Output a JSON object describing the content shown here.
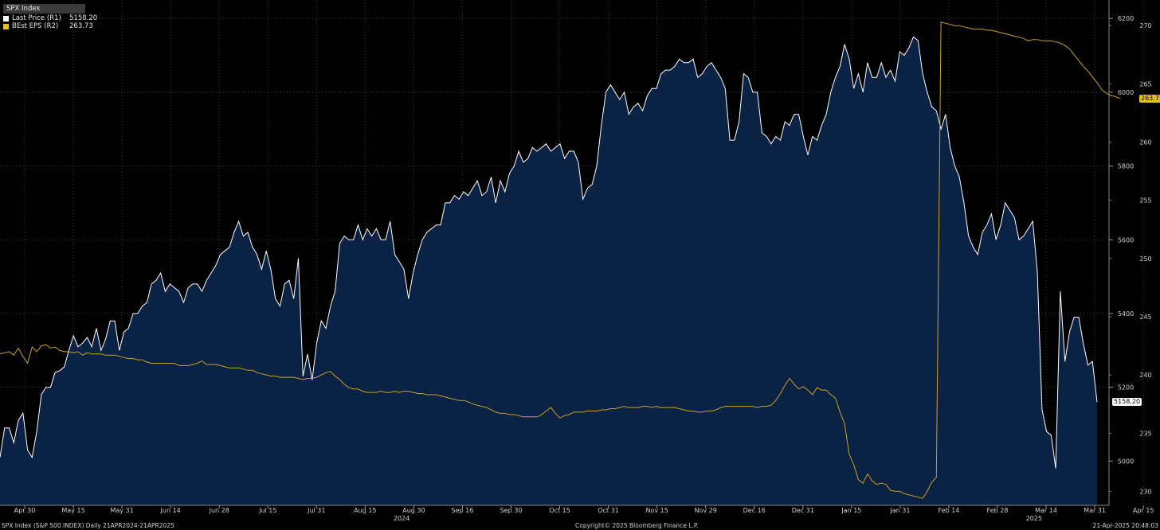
{
  "legend": {
    "header": "SPX Index",
    "entries": [
      {
        "label": "Last Price  (R1)",
        "value": "5158.20",
        "color": "#ffffff"
      },
      {
        "label": "BEst EPS  (R2)",
        "value": "263.73",
        "color": "#e8c21a"
      }
    ]
  },
  "footer": {
    "left": "SPX Index (S&P 500 INDEX)  Daily 21APR2024-21APR2025",
    "center": "Copyright© 2025 Bloomberg Finance L.P.",
    "right": "21-Apr-2025 20:48:03"
  },
  "chart_data": {
    "type": "area",
    "x_ticks": [
      "Apr 30",
      "May 15",
      "May 31",
      "Jun 14",
      "Jun 28",
      "Jul 15",
      "Jul 31",
      "Aug 15",
      "Aug 30",
      "Sep 16",
      "Sep 30",
      "Oct 15",
      "Oct 31",
      "Nov 15",
      "Nov 29",
      "Dec 16",
      "Dec 31",
      "Jan 15",
      "Jan 31",
      "Feb 14",
      "Feb 28",
      "Mar 14",
      "Mar 31",
      "Apr 15"
    ],
    "year_labels": [
      {
        "label": "2024",
        "after_tick": "Aug 15"
      },
      {
        "label": "2025",
        "after_tick": "Feb 28"
      }
    ],
    "axis_r1": {
      "ticks": [
        5000,
        5200,
        5400,
        5600,
        5800,
        6000,
        6200
      ],
      "range": [
        4880,
        6250
      ]
    },
    "axis_r2": {
      "ticks": [
        230,
        235,
        240,
        245,
        250,
        255,
        260,
        265,
        270
      ],
      "range": [
        228.8,
        272.2
      ]
    },
    "grid": true,
    "series": [
      {
        "name": "Last Price",
        "axis": "R1",
        "style": "area",
        "color": "#ffffff",
        "fill": "#0a2244",
        "last_value_label": "5158.20",
        "values": [
          5010,
          5090,
          5090,
          5050,
          5110,
          5130,
          5030,
          5010,
          5080,
          5180,
          5200,
          5200,
          5240,
          5245,
          5255,
          5300,
          5340,
          5310,
          5320,
          5335,
          5310,
          5360,
          5300,
          5330,
          5380,
          5380,
          5300,
          5350,
          5360,
          5400,
          5400,
          5420,
          5430,
          5480,
          5490,
          5510,
          5460,
          5480,
          5470,
          5460,
          5430,
          5470,
          5480,
          5480,
          5460,
          5490,
          5510,
          5530,
          5560,
          5570,
          5580,
          5620,
          5650,
          5610,
          5620,
          5580,
          5560,
          5520,
          5570,
          5520,
          5440,
          5420,
          5480,
          5490,
          5440,
          5550,
          5230,
          5290,
          5220,
          5320,
          5380,
          5360,
          5420,
          5460,
          5590,
          5610,
          5600,
          5600,
          5640,
          5600,
          5630,
          5610,
          5630,
          5600,
          5600,
          5650,
          5560,
          5540,
          5520,
          5440,
          5510,
          5560,
          5600,
          5620,
          5630,
          5640,
          5640,
          5700,
          5700,
          5720,
          5710,
          5730,
          5720,
          5740,
          5760,
          5720,
          5730,
          5770,
          5700,
          5760,
          5730,
          5780,
          5800,
          5840,
          5810,
          5820,
          5850,
          5840,
          5850,
          5860,
          5840,
          5850,
          5860,
          5820,
          5840,
          5840,
          5810,
          5710,
          5740,
          5750,
          5800,
          5910,
          6000,
          6020,
          6000,
          5980,
          6000,
          5940,
          5960,
          5970,
          5950,
          5990,
          6010,
          6010,
          6050,
          6060,
          6060,
          6070,
          6090,
          6080,
          6080,
          6090,
          6040,
          6050,
          6070,
          6080,
          6060,
          6040,
          6010,
          5870,
          5870,
          5920,
          6050,
          6040,
          6000,
          6000,
          5890,
          5880,
          5860,
          5880,
          5870,
          5920,
          5910,
          5940,
          5940,
          5880,
          5830,
          5880,
          5870,
          5910,
          5940,
          6000,
          6040,
          6070,
          6130,
          6090,
          6010,
          6050,
          6000,
          6080,
          6040,
          6040,
          6080,
          6040,
          6060,
          6030,
          6110,
          6100,
          6120,
          6150,
          6140,
          6050,
          6000,
          5960,
          5950,
          5900,
          5940,
          5850,
          5800,
          5770,
          5700,
          5610,
          5580,
          5560,
          5620,
          5640,
          5670,
          5600,
          5640,
          5700,
          5680,
          5660,
          5600,
          5610,
          5630,
          5650,
          5510,
          5140,
          5080,
          5070,
          4980,
          5460,
          5270,
          5350,
          5390,
          5390,
          5320,
          5260,
          5270,
          5160
        ]
      },
      {
        "name": "BEst EPS",
        "axis": "R2",
        "style": "line",
        "color": "#c9a227",
        "last_value_label": "263.73",
        "values": [
          241.8,
          241.9,
          242.0,
          241.7,
          242.3,
          241.6,
          241.0,
          242.4,
          242.0,
          242.5,
          242.6,
          242.3,
          242.4,
          242.1,
          242.0,
          242.0,
          241.9,
          242.0,
          241.7,
          241.9,
          241.8,
          241.8,
          241.8,
          241.7,
          241.7,
          241.7,
          241.6,
          241.5,
          241.4,
          241.4,
          241.3,
          241.3,
          241.1,
          241.0,
          241.0,
          241.0,
          241.0,
          241.0,
          241.0,
          240.8,
          240.8,
          240.8,
          240.9,
          241.0,
          241.2,
          240.9,
          240.9,
          240.9,
          240.8,
          240.7,
          240.6,
          240.6,
          240.6,
          240.5,
          240.4,
          240.4,
          240.2,
          240.1,
          240.0,
          239.9,
          239.9,
          239.8,
          239.8,
          239.8,
          239.8,
          239.7,
          239.6,
          239.7,
          239.7,
          239.8,
          240.0,
          240.2,
          240.3,
          239.9,
          239.6,
          239.2,
          238.9,
          238.8,
          238.8,
          238.6,
          238.5,
          238.5,
          238.5,
          238.6,
          238.5,
          238.5,
          238.6,
          238.5,
          238.6,
          238.6,
          238.5,
          238.4,
          238.4,
          238.3,
          238.3,
          238.3,
          238.2,
          238.1,
          238.0,
          237.9,
          237.8,
          237.8,
          237.7,
          237.5,
          237.4,
          237.3,
          237.2,
          237.0,
          236.8,
          236.7,
          236.7,
          236.6,
          236.6,
          236.5,
          236.4,
          236.4,
          236.4,
          236.4,
          236.6,
          236.9,
          237.2,
          236.7,
          236.3,
          236.5,
          236.6,
          236.8,
          236.8,
          236.8,
          236.9,
          236.9,
          236.9,
          237.0,
          237.0,
          237.1,
          237.1,
          237.2,
          237.3,
          237.2,
          237.2,
          237.2,
          237.3,
          237.3,
          237.2,
          237.3,
          237.2,
          237.2,
          237.2,
          237.2,
          237.1,
          237.0,
          236.9,
          236.9,
          236.8,
          236.8,
          236.9,
          236.9,
          237.0,
          237.2,
          237.3,
          237.3,
          237.3,
          237.3,
          237.3,
          237.3,
          237.3,
          237.2,
          237.3,
          237.3,
          237.4,
          237.8,
          238.4,
          239.1,
          239.7,
          239.2,
          238.8,
          239.0,
          238.7,
          238.3,
          238.9,
          238.7,
          238.7,
          238.3,
          238.0,
          236.8,
          235.8,
          233.2,
          232.3,
          231.0,
          230.7,
          231.5,
          230.9,
          230.6,
          230.7,
          230.6,
          230.1,
          230.0,
          230.0,
          229.8,
          229.7,
          229.6,
          229.5,
          229.4,
          230.0,
          230.8,
          231.2,
          270.3,
          270.2,
          270.1,
          270.0,
          270.0,
          269.9,
          269.8,
          269.7,
          269.7,
          269.7,
          269.6,
          269.6,
          269.5,
          269.4,
          269.3,
          269.2,
          269.1,
          269.0,
          268.9,
          268.7,
          268.8,
          268.8,
          268.7,
          268.7,
          268.7,
          268.6,
          268.5,
          268.3,
          268.0,
          267.5,
          267.0,
          266.5,
          266.1,
          265.6,
          265.1,
          264.5,
          264.2,
          264.0,
          263.9,
          263.73
        ]
      }
    ]
  }
}
